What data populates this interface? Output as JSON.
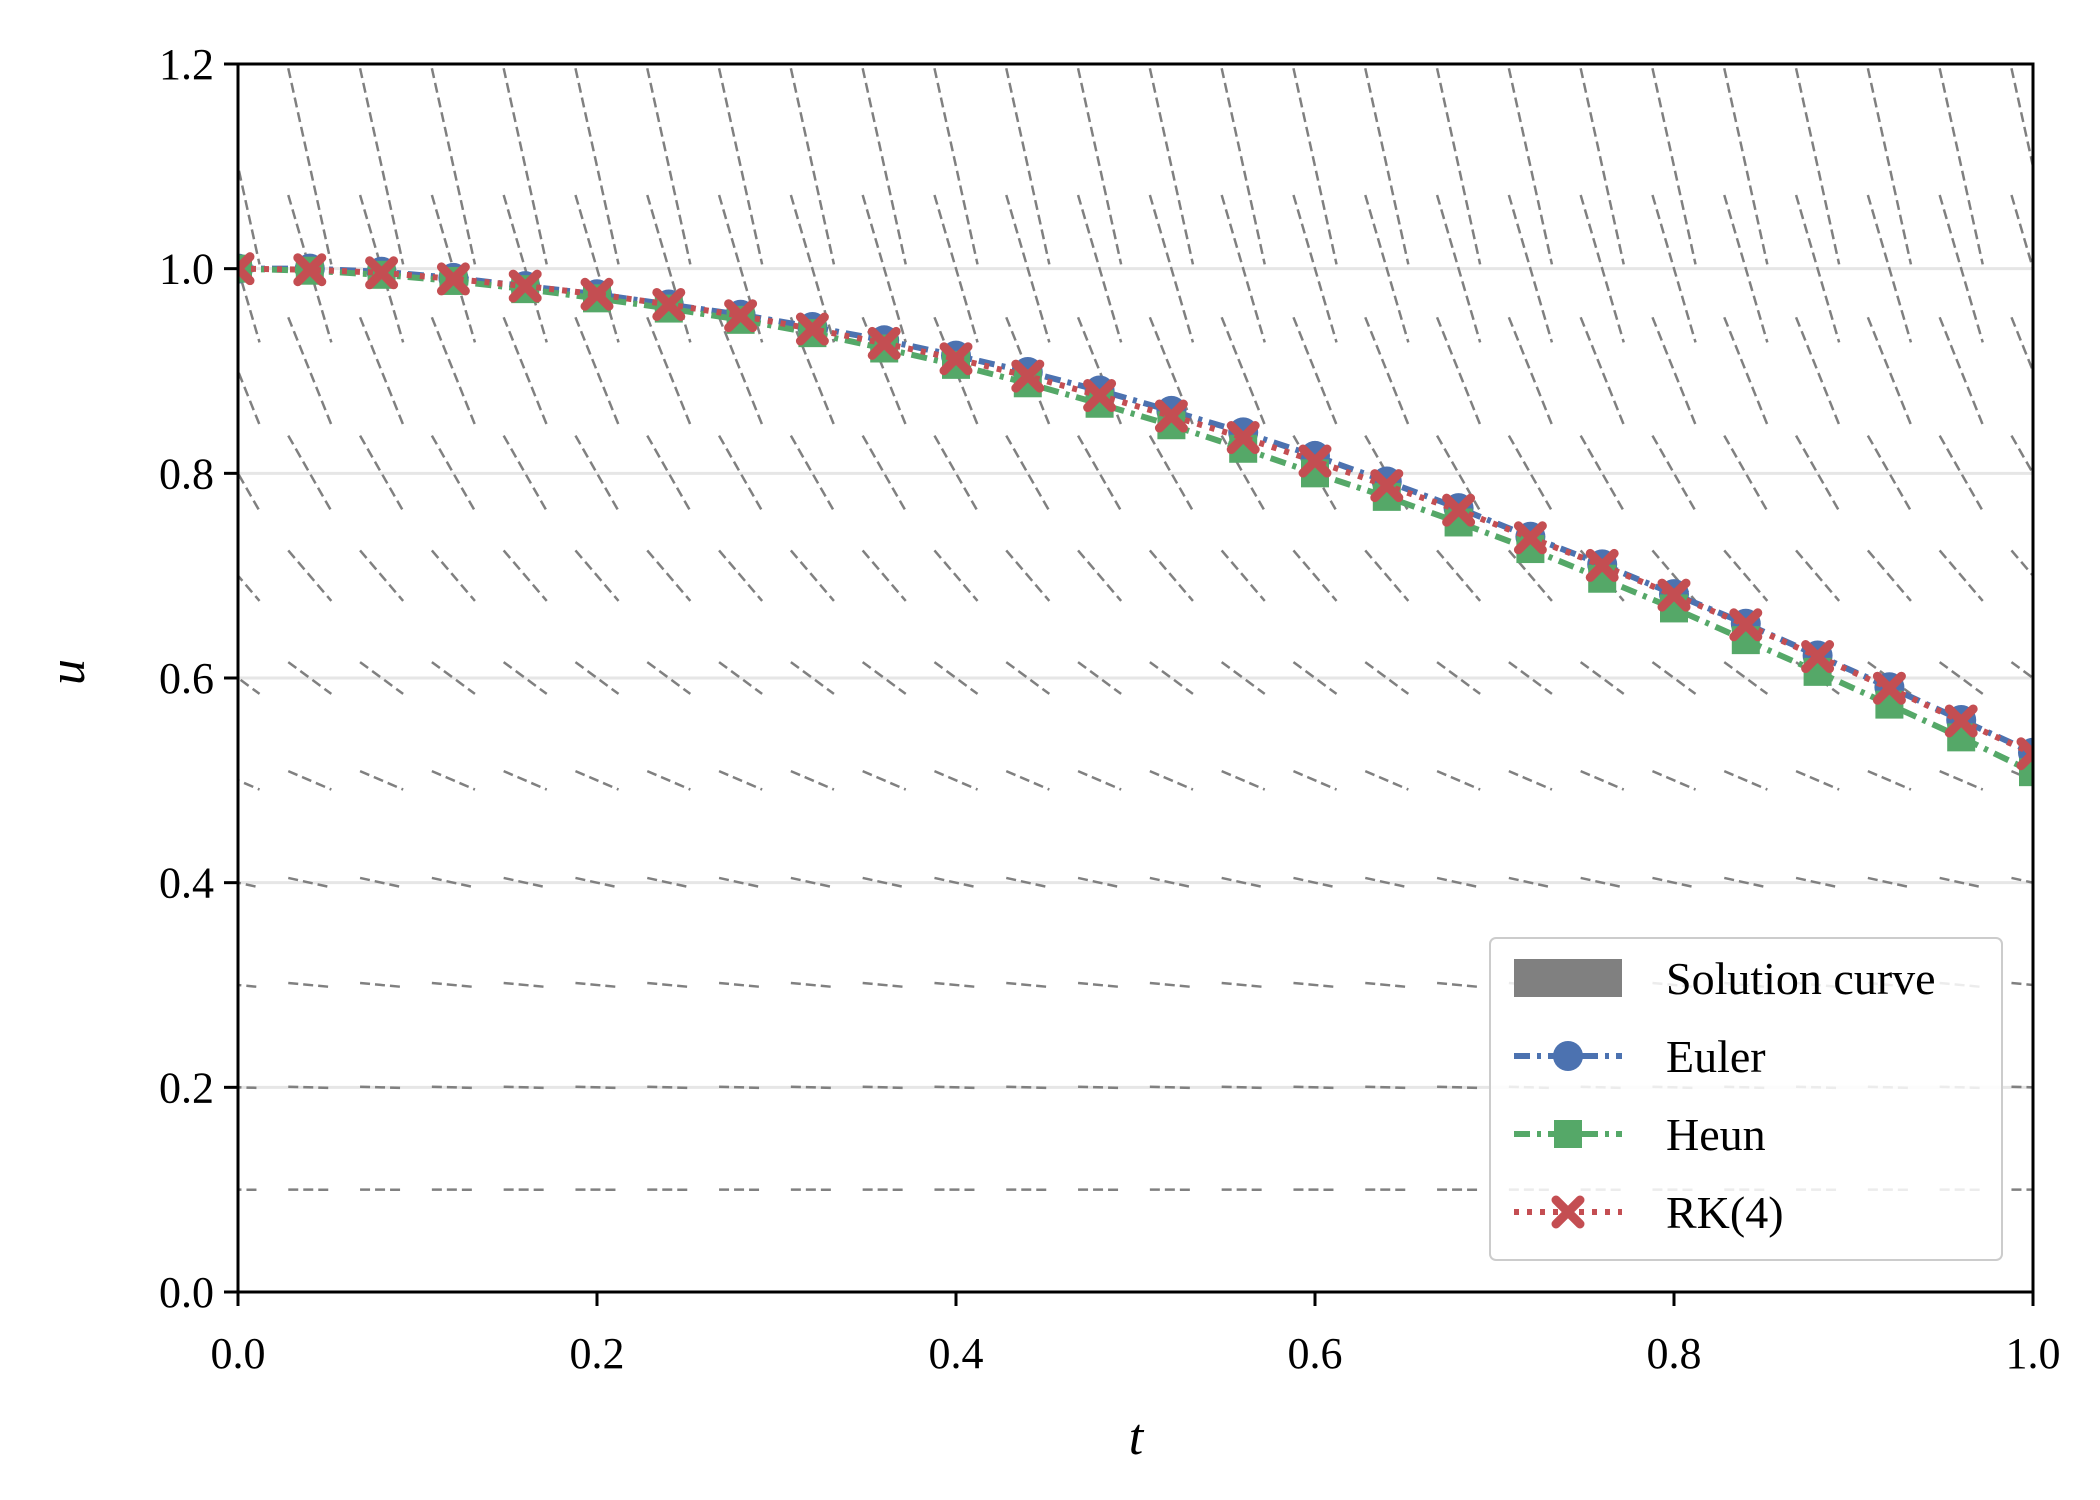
{
  "chart_data": {
    "type": "line",
    "title": "",
    "xlabel": "t",
    "ylabel": "u",
    "xlim": [
      0.0,
      1.0
    ],
    "ylim": [
      0.0,
      1.2
    ],
    "xticks": [
      "0.0",
      "0.2",
      "0.4",
      "0.6",
      "0.8",
      "1.0"
    ],
    "yticks": [
      "0.0",
      "0.2",
      "0.4",
      "0.6",
      "0.8",
      "1.0",
      "1.2"
    ],
    "grid": "horizontal",
    "legend_position": "lower-right",
    "direction_field": {
      "t_columns": [
        0.0,
        0.04,
        0.08,
        0.12,
        0.16,
        0.2,
        0.24,
        0.28,
        0.32,
        0.36,
        0.4,
        0.44,
        0.48,
        0.52,
        0.56,
        0.6,
        0.64,
        0.68,
        0.72,
        0.76,
        0.8,
        0.84,
        0.88,
        0.92,
        0.96,
        1.0
      ],
      "u_samples": [
        0.0,
        0.1,
        0.2,
        0.3,
        0.4,
        0.5,
        0.6,
        0.7,
        0.8,
        0.9,
        1.0,
        1.1
      ],
      "color": "#808080"
    },
    "series": [
      {
        "name": "Solution curve",
        "color": "#808080",
        "legend_style": "patch",
        "x": [],
        "y": []
      },
      {
        "name": "Euler",
        "color": "#4c72b0",
        "marker": "circle",
        "dash": "dash-dot",
        "x": [
          0.0,
          0.04,
          0.08,
          0.12,
          0.16,
          0.2,
          0.24,
          0.28,
          0.32,
          0.36,
          0.4,
          0.44,
          0.48,
          0.52,
          0.56,
          0.6,
          0.64,
          0.68,
          0.72,
          0.76,
          0.8,
          0.84,
          0.88,
          0.92,
          0.96,
          1.0
        ],
        "y": [
          1.0,
          1.0,
          0.997,
          0.991,
          0.983,
          0.975,
          0.965,
          0.955,
          0.943,
          0.93,
          0.915,
          0.899,
          0.881,
          0.861,
          0.84,
          0.817,
          0.792,
          0.766,
          0.738,
          0.711,
          0.682,
          0.653,
          0.622,
          0.591,
          0.559,
          0.527
        ]
      },
      {
        "name": "Heun",
        "color": "#55a868",
        "marker": "square",
        "dash": "dash-dot",
        "x": [
          0.0,
          0.04,
          0.08,
          0.12,
          0.16,
          0.2,
          0.24,
          0.28,
          0.32,
          0.36,
          0.4,
          0.44,
          0.48,
          0.52,
          0.56,
          0.6,
          0.64,
          0.68,
          0.72,
          0.76,
          0.8,
          0.84,
          0.88,
          0.92,
          0.96,
          1.0
        ],
        "y": [
          1.0,
          0.998,
          0.994,
          0.988,
          0.98,
          0.971,
          0.961,
          0.95,
          0.937,
          0.922,
          0.906,
          0.888,
          0.868,
          0.847,
          0.824,
          0.8,
          0.777,
          0.752,
          0.726,
          0.697,
          0.668,
          0.637,
          0.606,
          0.574,
          0.542,
          0.508
        ]
      },
      {
        "name": "RK(4)",
        "color": "#c44e52",
        "marker": "x",
        "dash": "dotted",
        "x": [
          0.0,
          0.04,
          0.08,
          0.12,
          0.16,
          0.2,
          0.24,
          0.28,
          0.32,
          0.36,
          0.4,
          0.44,
          0.48,
          0.52,
          0.56,
          0.6,
          0.64,
          0.68,
          0.72,
          0.76,
          0.8,
          0.84,
          0.88,
          0.92,
          0.96,
          1.0
        ],
        "y": [
          1.0,
          0.999,
          0.996,
          0.99,
          0.983,
          0.975,
          0.965,
          0.954,
          0.941,
          0.927,
          0.912,
          0.895,
          0.876,
          0.856,
          0.835,
          0.812,
          0.788,
          0.764,
          0.737,
          0.71,
          0.681,
          0.652,
          0.621,
          0.59,
          0.558,
          0.526
        ]
      }
    ]
  }
}
